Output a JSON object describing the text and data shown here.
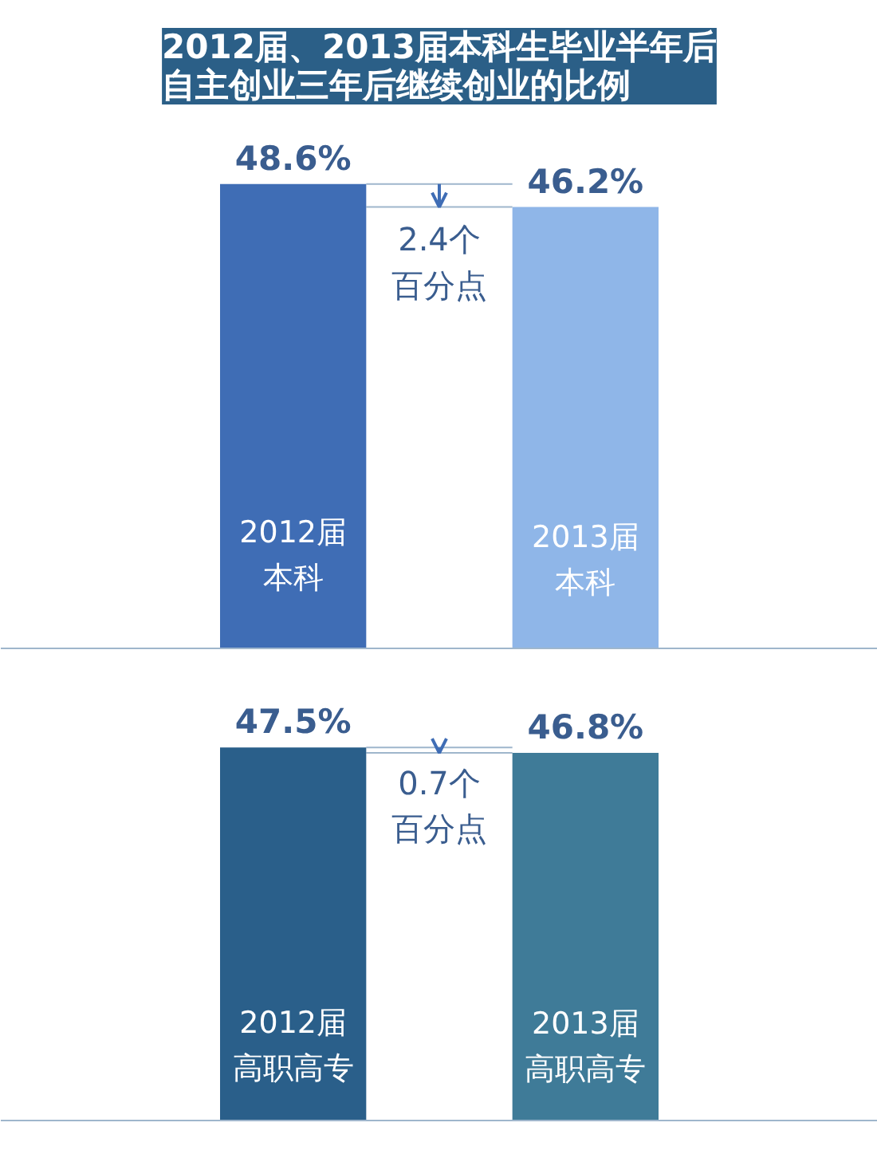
{
  "chart_data": [
    {
      "type": "bar",
      "title": "2012届、2013届本科生毕业半年后自主创业三年后继续创业的比例",
      "categories": [
        "2012届本科",
        "2013届本科"
      ],
      "values": [
        48.6,
        46.2
      ],
      "colors": [
        "#3f6db5",
        "#8fb6e8"
      ],
      "value_labels": [
        "48.6%",
        "46.2%"
      ],
      "annotations": [
        "2.4个百分点"
      ],
      "ref_lines": [
        {
          "axis": "y",
          "value": 48.6,
          "color": "#9fb6cc"
        },
        {
          "axis": "y",
          "value": 46.2,
          "color": "#9fb6cc"
        }
      ]
    },
    {
      "type": "bar",
      "categories": [
        "2012届高职高专",
        "2013届高职高专"
      ],
      "values": [
        47.5,
        46.8
      ],
      "colors": [
        "#2a5f8a",
        "#3f7b98"
      ],
      "value_labels": [
        "47.5%",
        "46.8%"
      ],
      "annotations": [
        "0.7个百分点"
      ],
      "ref_lines": [
        {
          "axis": "y",
          "value": 47.5,
          "color": "#9fb6cc"
        },
        {
          "axis": "y",
          "value": 46.8,
          "color": "#9fb6cc"
        }
      ]
    }
  ]
}
